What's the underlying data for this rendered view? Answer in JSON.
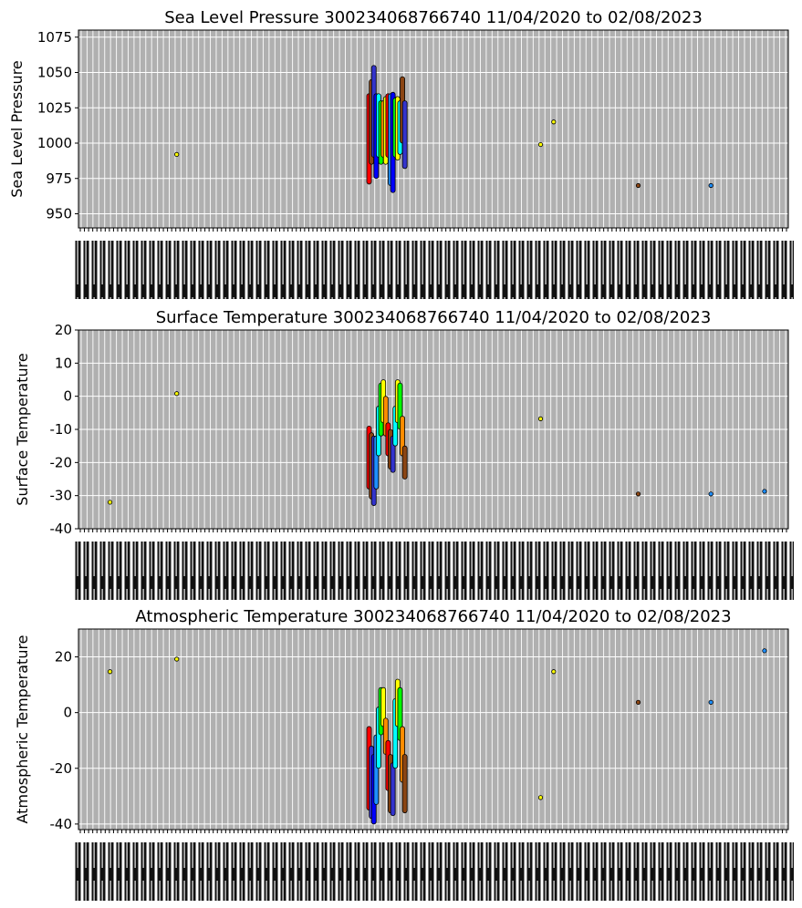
{
  "chart_data": [
    {
      "type": "scatter",
      "title": "Sea Level Pressure 300234068766740  11/04/2020 to 02/08/2023",
      "xlabel": "",
      "ylabel": "Sea Level Pressure",
      "ylim": [
        940,
        1080
      ],
      "yticks": [
        950,
        975,
        1000,
        1025,
        1050,
        1075
      ],
      "grid": true,
      "x_range_days": [
        0,
        1192
      ],
      "points": [
        {
          "x": 165,
          "y": 992,
          "color": "#ffff00"
        },
        {
          "x": 776,
          "y": 999,
          "color": "#ffff00"
        },
        {
          "x": 798,
          "y": 1015,
          "color": "#ffff00"
        },
        {
          "x": 940,
          "y": 970,
          "color": "#8b4513"
        },
        {
          "x": 1062,
          "y": 970,
          "color": "#1e90ff"
        }
      ],
      "bands": [
        {
          "x": 488,
          "ymin": 971,
          "ymax": 1035,
          "color": "#ff0000"
        },
        {
          "x": 492,
          "ymin": 985,
          "ymax": 1045,
          "color": "#8b4513"
        },
        {
          "x": 496,
          "ymin": 990,
          "ymax": 1055,
          "color": "#3333cc"
        },
        {
          "x": 500,
          "ymin": 975,
          "ymax": 1035,
          "color": "#0000ff"
        },
        {
          "x": 504,
          "ymin": 990,
          "ymax": 1035,
          "color": "#00ffff"
        },
        {
          "x": 508,
          "ymin": 985,
          "ymax": 1030,
          "color": "#00ff00"
        },
        {
          "x": 512,
          "ymin": 990,
          "ymax": 1030,
          "color": "#ff8c00"
        },
        {
          "x": 516,
          "ymin": 985,
          "ymax": 1033,
          "color": "#ffff00"
        },
        {
          "x": 520,
          "ymin": 990,
          "ymax": 1035,
          "color": "#ff0000"
        },
        {
          "x": 524,
          "ymin": 970,
          "ymax": 1035,
          "color": "#1e90ff"
        },
        {
          "x": 528,
          "ymin": 965,
          "ymax": 1036,
          "color": "#0000ff"
        },
        {
          "x": 532,
          "ymin": 990,
          "ymax": 1032,
          "color": "#00ff00"
        },
        {
          "x": 536,
          "ymin": 988,
          "ymax": 1033,
          "color": "#ffff00"
        },
        {
          "x": 540,
          "ymin": 992,
          "ymax": 1030,
          "color": "#00ffff"
        },
        {
          "x": 544,
          "ymin": 1000,
          "ymax": 1047,
          "color": "#8b4513"
        },
        {
          "x": 548,
          "ymin": 982,
          "ymax": 1030,
          "color": "#3333cc"
        }
      ]
    },
    {
      "type": "scatter",
      "title": "Surface Temperature 300234068766740  11/04/2020 to 02/08/2023",
      "xlabel": "",
      "ylabel": "Surface Temperature",
      "ylim": [
        -40,
        20
      ],
      "yticks": [
        -40,
        -30,
        -20,
        -10,
        0,
        10,
        20
      ],
      "grid": true,
      "x_range_days": [
        0,
        1192
      ],
      "points": [
        {
          "x": 53,
          "y": -32,
          "color": "#ffff00"
        },
        {
          "x": 165,
          "y": 0.8,
          "color": "#ffff00"
        },
        {
          "x": 776,
          "y": -6.8,
          "color": "#ffff00"
        },
        {
          "x": 940,
          "y": -29.5,
          "color": "#8b4513"
        },
        {
          "x": 1062,
          "y": -29.5,
          "color": "#1e90ff"
        },
        {
          "x": 1152,
          "y": -28.7,
          "color": "#1e90ff"
        }
      ],
      "bands": [
        {
          "x": 488,
          "ymin": -28,
          "ymax": -9,
          "color": "#ff0000"
        },
        {
          "x": 492,
          "ymin": -31,
          "ymax": -11,
          "color": "#8b4513"
        },
        {
          "x": 496,
          "ymin": -33,
          "ymax": -12,
          "color": "#3333cc"
        },
        {
          "x": 500,
          "ymin": -28,
          "ymax": -12,
          "color": "#1e90ff"
        },
        {
          "x": 504,
          "ymin": -18,
          "ymax": -3,
          "color": "#00ffff"
        },
        {
          "x": 508,
          "ymin": -12,
          "ymax": 4,
          "color": "#00ff00"
        },
        {
          "x": 512,
          "ymin": -8,
          "ymax": 5,
          "color": "#ffff00"
        },
        {
          "x": 516,
          "ymin": -12,
          "ymax": 0,
          "color": "#ff8c00"
        },
        {
          "x": 520,
          "ymin": -18,
          "ymax": -8,
          "color": "#ff0000"
        },
        {
          "x": 524,
          "ymin": -22,
          "ymax": -10,
          "color": "#8b4513"
        },
        {
          "x": 528,
          "ymin": -23,
          "ymax": -12,
          "color": "#3333cc"
        },
        {
          "x": 532,
          "ymin": -15,
          "ymax": -3,
          "color": "#00ffff"
        },
        {
          "x": 536,
          "ymin": -8,
          "ymax": 5,
          "color": "#ffff00"
        },
        {
          "x": 540,
          "ymin": -10,
          "ymax": 4,
          "color": "#00ff00"
        },
        {
          "x": 544,
          "ymin": -18,
          "ymax": -6,
          "color": "#ff8c00"
        },
        {
          "x": 548,
          "ymin": -25,
          "ymax": -15,
          "color": "#8b4513"
        }
      ]
    },
    {
      "type": "scatter",
      "title": "Atmospheric Temperature 300234068766740  11/04/2020 to 02/08/2023",
      "xlabel": "",
      "ylabel": "Atmospheric Temperature",
      "ylim": [
        -42,
        30
      ],
      "yticks": [
        -40,
        -20,
        0,
        20
      ],
      "grid": true,
      "x_range_days": [
        0,
        1192
      ],
      "points": [
        {
          "x": 53,
          "y": 14.7,
          "color": "#ffff00"
        },
        {
          "x": 165,
          "y": 19.2,
          "color": "#ffff00"
        },
        {
          "x": 776,
          "y": -30.5,
          "color": "#ffff00"
        },
        {
          "x": 798,
          "y": 14.7,
          "color": "#ffff00"
        },
        {
          "x": 940,
          "y": 3.7,
          "color": "#8b4513"
        },
        {
          "x": 1062,
          "y": 3.7,
          "color": "#1e90ff"
        },
        {
          "x": 1152,
          "y": 22.2,
          "color": "#1e90ff"
        }
      ],
      "bands": [
        {
          "x": 488,
          "ymin": -35,
          "ymax": -5,
          "color": "#ff0000"
        },
        {
          "x": 492,
          "ymin": -38,
          "ymax": -12,
          "color": "#3333cc"
        },
        {
          "x": 496,
          "ymin": -40,
          "ymax": -15,
          "color": "#0000ff"
        },
        {
          "x": 500,
          "ymin": -33,
          "ymax": -8,
          "color": "#1e90ff"
        },
        {
          "x": 504,
          "ymin": -20,
          "ymax": 2,
          "color": "#00ffff"
        },
        {
          "x": 508,
          "ymin": -8,
          "ymax": 9,
          "color": "#00ff00"
        },
        {
          "x": 512,
          "ymin": -5,
          "ymax": 9,
          "color": "#ffff00"
        },
        {
          "x": 516,
          "ymin": -15,
          "ymax": -2,
          "color": "#ff8c00"
        },
        {
          "x": 520,
          "ymin": -28,
          "ymax": -10,
          "color": "#ff0000"
        },
        {
          "x": 524,
          "ymin": -36,
          "ymax": -15,
          "color": "#8b4513"
        },
        {
          "x": 528,
          "ymin": -37,
          "ymax": -18,
          "color": "#3333cc"
        },
        {
          "x": 532,
          "ymin": -20,
          "ymax": 5,
          "color": "#00ffff"
        },
        {
          "x": 536,
          "ymin": -5,
          "ymax": 12,
          "color": "#ffff00"
        },
        {
          "x": 540,
          "ymin": -10,
          "ymax": 9,
          "color": "#00ff00"
        },
        {
          "x": 544,
          "ymin": -25,
          "ymax": -5,
          "color": "#ff8c00"
        },
        {
          "x": 548,
          "ymin": -36,
          "ymax": -15,
          "color": "#8b4513"
        }
      ]
    }
  ]
}
